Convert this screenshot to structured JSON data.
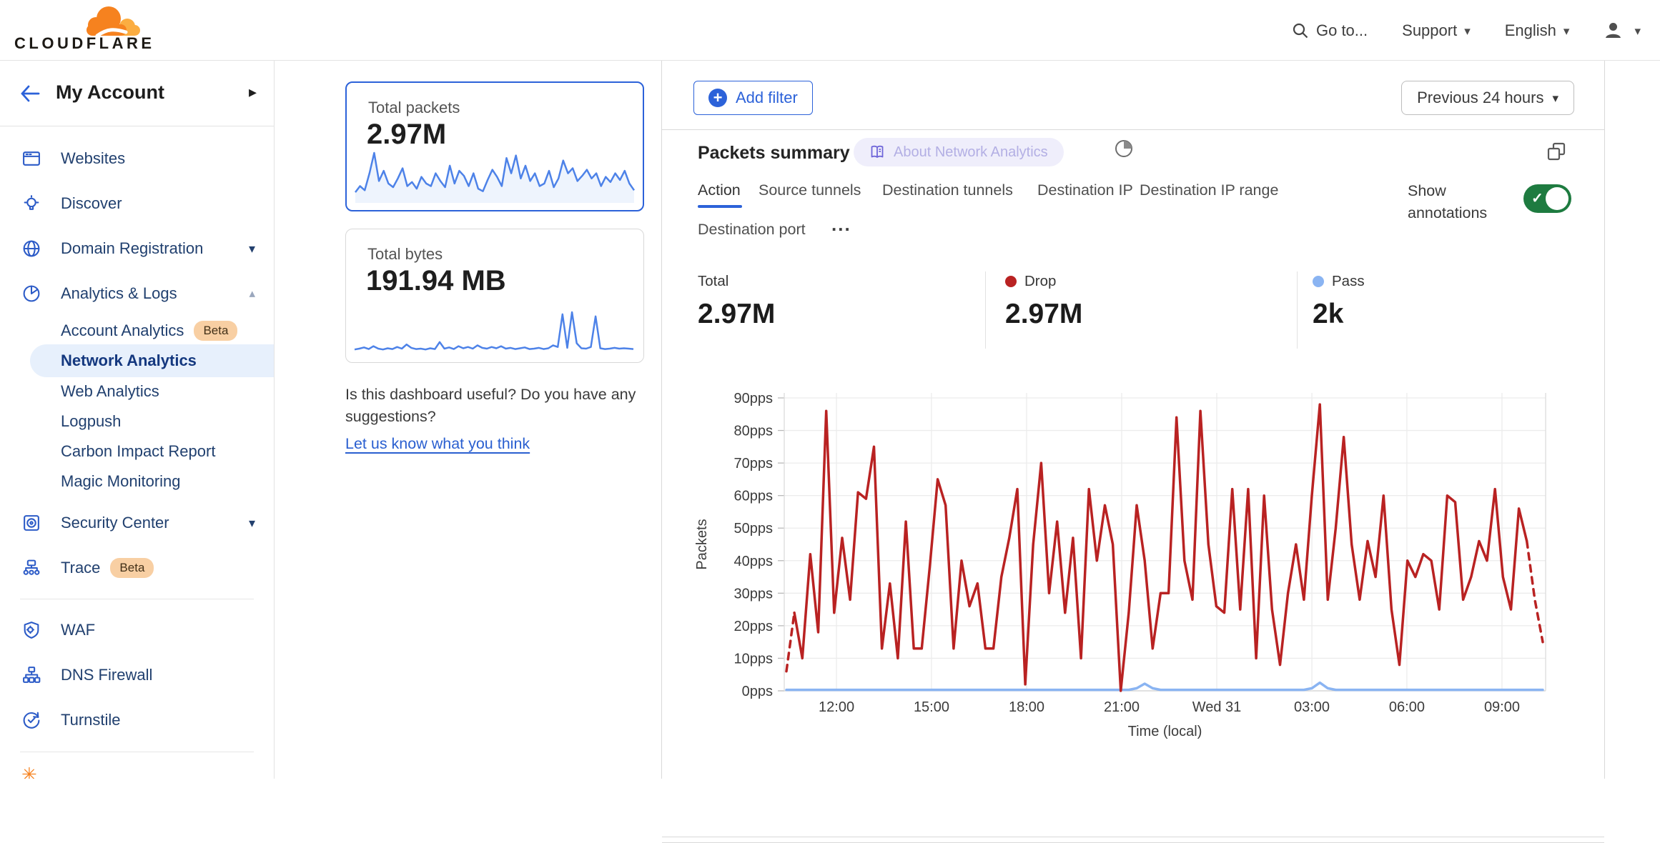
{
  "header": {
    "logo": "CLOUDFLARE",
    "search": "Go to...",
    "support": "Support",
    "language": "English"
  },
  "sidebar": {
    "account_label": "My Account",
    "items": [
      {
        "label": "Websites"
      },
      {
        "label": "Discover"
      },
      {
        "label": "Domain Registration"
      },
      {
        "label": "Analytics & Logs"
      },
      {
        "label": "Account Analytics",
        "badge": "Beta"
      },
      {
        "label": "Network Analytics",
        "selected": true
      },
      {
        "label": "Web Analytics"
      },
      {
        "label": "Logpush"
      },
      {
        "label": "Carbon Impact Report"
      },
      {
        "label": "Magic Monitoring"
      },
      {
        "label": "Security Center"
      },
      {
        "label": "Trace",
        "badge": "Beta"
      },
      {
        "label": "WAF"
      },
      {
        "label": "DNS Firewall"
      },
      {
        "label": "Turnstile"
      }
    ]
  },
  "metric_cards": [
    {
      "title": "Total packets",
      "value": "2.97M",
      "selected": true
    },
    {
      "title": "Total bytes",
      "value": "191.94 MB",
      "selected": false
    }
  ],
  "feedback": {
    "question": "Is this dashboard useful? Do you have any suggestions?",
    "link": "Let us know what you think"
  },
  "toolbar": {
    "add_filter": "Add filter",
    "time_range": "Previous 24 hours"
  },
  "panel": {
    "title": "Packets summary",
    "about": "About Network Analytics",
    "tabs": [
      "Action",
      "Source tunnels",
      "Destination tunnels",
      "Destination IP",
      "Destination IP range",
      "Destination port"
    ],
    "tabs_more": "...",
    "active_tab": "Action",
    "annotations_line1": "Show",
    "annotations_line2": "annotations",
    "annotations_on": true,
    "stats": [
      {
        "label": "Total",
        "value": "2.97M"
      },
      {
        "label": "Drop",
        "value": "2.97M"
      },
      {
        "label": "Pass",
        "value": "2k"
      }
    ]
  },
  "colors": {
    "accent": "#2c62d9",
    "drop": "#b92222",
    "pass": "#8ab4f2",
    "toggle_on": "#1e7b40",
    "beta_badge": "#f8cfa3",
    "spark_blue": "#4d82e8"
  },
  "chart_data": [
    {
      "id": "packets-sparkline",
      "type": "line",
      "title": "Total packets sparkline (24h)",
      "color": "#4d82e8",
      "fill": "#e3edfc",
      "values": [
        18,
        30,
        22,
        55,
        95,
        40,
        60,
        35,
        28,
        45,
        65,
        30,
        38,
        25,
        48,
        35,
        30,
        55,
        40,
        28,
        70,
        35,
        60,
        50,
        30,
        55,
        25,
        20,
        42,
        62,
        48,
        30,
        85,
        55,
        90,
        45,
        70,
        40,
        55,
        30,
        35,
        60,
        28,
        45,
        80,
        55,
        65,
        40,
        50,
        62,
        45,
        55,
        30,
        48,
        38,
        55,
        42,
        60,
        35,
        22
      ]
    },
    {
      "id": "bytes-sparkline",
      "type": "line",
      "title": "Total bytes sparkline (24h)",
      "color": "#4d82e8",
      "fill": null,
      "values": [
        10,
        12,
        15,
        11,
        18,
        12,
        10,
        13,
        11,
        16,
        12,
        22,
        14,
        11,
        12,
        10,
        13,
        11,
        28,
        12,
        15,
        11,
        18,
        13,
        16,
        12,
        20,
        14,
        12,
        16,
        13,
        18,
        12,
        14,
        11,
        13,
        15,
        11,
        12,
        14,
        11,
        13,
        20,
        16,
        95,
        14,
        100,
        25,
        13,
        12,
        16,
        90,
        13,
        11,
        12,
        14,
        12,
        13,
        12,
        11
      ]
    },
    {
      "id": "packets-summary-chart",
      "type": "line",
      "title": "Packets summary — Action",
      "xlabel": "Time (local)",
      "ylabel": "Packets",
      "ylim": [
        0,
        90
      ],
      "y_unit": "pps",
      "y_ticks": [
        0,
        10,
        20,
        30,
        40,
        50,
        60,
        70,
        80,
        90
      ],
      "grid": true,
      "x_ticks": [
        {
          "label": "12:00",
          "pos": 0.0686
        },
        {
          "label": "15:00",
          "pos": 0.1934
        },
        {
          "label": "18:00",
          "pos": 0.3183
        },
        {
          "label": "21:00",
          "pos": 0.4432
        },
        {
          "label": "Wed 31",
          "pos": 0.5681
        },
        {
          "label": "03:00",
          "pos": 0.693
        },
        {
          "label": "06:00",
          "pos": 0.8178
        },
        {
          "label": "09:00",
          "pos": 0.9427
        }
      ],
      "series": [
        {
          "name": "Drop",
          "color": "#b92222",
          "dash_head": 1,
          "dash_tail": 2,
          "values": [
            6,
            24,
            10,
            42,
            18,
            86,
            24,
            47,
            28,
            61,
            59,
            75,
            13,
            33,
            10,
            52,
            13,
            13,
            38,
            65,
            57,
            13,
            40,
            26,
            33,
            13,
            13,
            35,
            47,
            62,
            2,
            45,
            70,
            30,
            52,
            24,
            47,
            10,
            62,
            40,
            57,
            45,
            0,
            24,
            57,
            40,
            13,
            30,
            30,
            84,
            40,
            28,
            86,
            45,
            26,
            24,
            62,
            25,
            62,
            10,
            60,
            25,
            8,
            30,
            45,
            28,
            60,
            88,
            28,
            50,
            78,
            45,
            28,
            46,
            35,
            60,
            25,
            8,
            40,
            35,
            42,
            40,
            25,
            60,
            58,
            28,
            35,
            46,
            40,
            62,
            35,
            25,
            56,
            46,
            28,
            15
          ]
        },
        {
          "name": "Pass",
          "color": "#8ab4f2",
          "values": [
            0.3,
            0.3,
            0.3,
            0.3,
            0.3,
            0.3,
            0.3,
            0.3,
            0.3,
            0.3,
            0.3,
            0.3,
            0.3,
            0.3,
            0.3,
            0.3,
            0.3,
            0.3,
            0.3,
            0.3,
            0.3,
            0.3,
            0.3,
            0.3,
            0.3,
            0.3,
            0.3,
            0.3,
            0.3,
            0.3,
            0.3,
            0.3,
            0.3,
            0.3,
            0.3,
            0.3,
            0.3,
            0.3,
            0.3,
            0.3,
            0.3,
            0.3,
            0.3,
            0.3,
            0.8,
            2.2,
            0.8,
            0.3,
            0.3,
            0.3,
            0.3,
            0.3,
            0.3,
            0.3,
            0.3,
            0.3,
            0.3,
            0.3,
            0.3,
            0.3,
            0.3,
            0.3,
            0.3,
            0.3,
            0.3,
            0.3,
            0.8,
            2.5,
            0.8,
            0.3,
            0.3,
            0.3,
            0.3,
            0.3,
            0.3,
            0.3,
            0.3,
            0.3,
            0.3,
            0.3,
            0.3,
            0.3,
            0.3,
            0.3,
            0.3,
            0.3,
            0.3,
            0.3,
            0.3,
            0.3,
            0.3,
            0.3,
            0.3,
            0.3,
            0.3,
            0.3
          ]
        }
      ]
    }
  ]
}
